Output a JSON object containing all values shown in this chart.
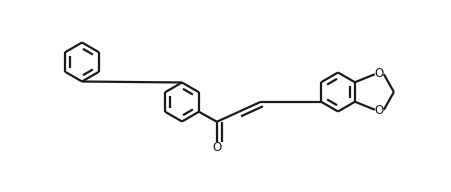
{
  "bg_color": "#ffffff",
  "line_color": "#1a1a1a",
  "line_width": 1.6,
  "fig_width": 4.52,
  "fig_height": 1.92,
  "dpi": 100,
  "xlim": [
    0,
    4.52
  ],
  "ylim": [
    0,
    1.92
  ]
}
